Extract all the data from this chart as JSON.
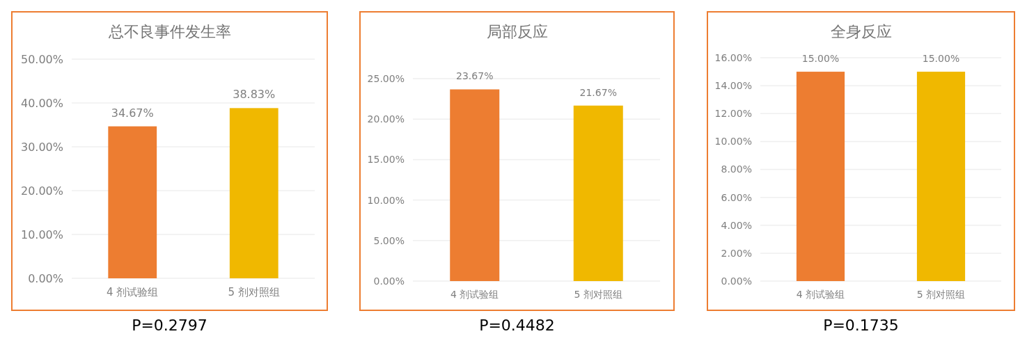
{
  "chart_data": [
    {
      "type": "bar",
      "title": "总不良事件发生率",
      "categories": [
        "4 剂试验组",
        "5 剂对照组"
      ],
      "values": [
        34.67,
        38.83
      ],
      "colors": [
        "#ed7d31",
        "#f0b800"
      ],
      "value_labels": [
        "34.67%",
        "38.83%"
      ],
      "ylim": [
        0,
        50
      ],
      "yticks": [
        {
          "value": 0,
          "label": "0.00%"
        },
        {
          "value": 10,
          "label": "10.00%"
        },
        {
          "value": 20,
          "label": "20.00%"
        },
        {
          "value": 30,
          "label": "30.00%"
        },
        {
          "value": 40,
          "label": "40.00%"
        },
        {
          "value": 50,
          "label": "50.00%"
        }
      ],
      "grid": "y",
      "annotations": [
        "P=0.2797"
      ]
    },
    {
      "type": "bar",
      "title": "局部反应",
      "categories": [
        "4 剂试验组",
        "5 剂对照组"
      ],
      "values": [
        23.67,
        21.67
      ],
      "colors": [
        "#ed7d31",
        "#f0b800"
      ],
      "value_labels": [
        "23.67%",
        "21.67%"
      ],
      "ylim": [
        0,
        25
      ],
      "yticks": [
        {
          "value": 0,
          "label": "0.00%"
        },
        {
          "value": 5,
          "label": "5.00%"
        },
        {
          "value": 10,
          "label": "10.00%"
        },
        {
          "value": 15,
          "label": "15.00%"
        },
        {
          "value": 20,
          "label": "20.00%"
        },
        {
          "value": 25,
          "label": "25.00%"
        }
      ],
      "grid": "y",
      "annotations": [
        "P=0.4482"
      ]
    },
    {
      "type": "bar",
      "title": "全身反应",
      "categories": [
        "4 剂试验组",
        "5 剂对照组"
      ],
      "values": [
        15.0,
        15.0
      ],
      "colors": [
        "#ed7d31",
        "#f0b800"
      ],
      "value_labels": [
        "15.00%",
        "15.00%"
      ],
      "ylim": [
        0,
        16
      ],
      "yticks": [
        {
          "value": 0,
          "label": "0.00%"
        },
        {
          "value": 2,
          "label": "2.00%"
        },
        {
          "value": 4,
          "label": "4.00%"
        },
        {
          "value": 6,
          "label": "6.00%"
        },
        {
          "value": 8,
          "label": "8.00%"
        },
        {
          "value": 10,
          "label": "10.00%"
        },
        {
          "value": 12,
          "label": "12.00%"
        },
        {
          "value": 14,
          "label": "14.00%"
        },
        {
          "value": 16,
          "label": "16.00%"
        }
      ],
      "grid": "y",
      "annotations": [
        "P=0.1735"
      ]
    }
  ]
}
